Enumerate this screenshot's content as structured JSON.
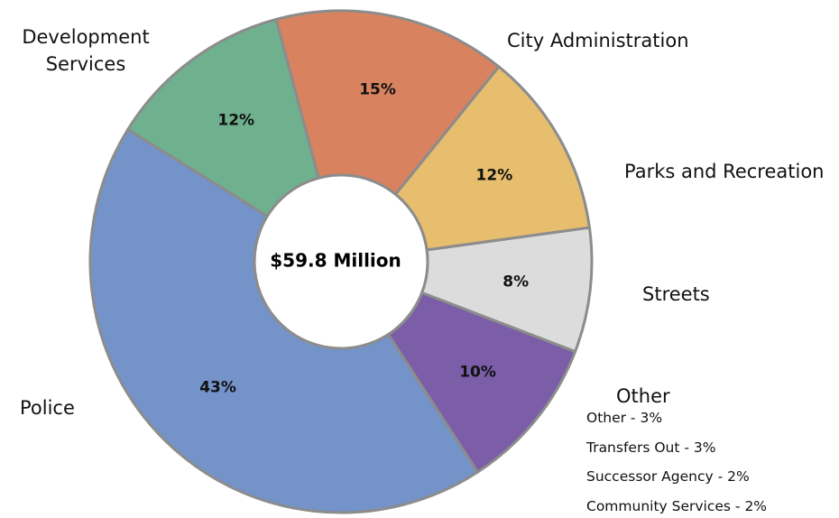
{
  "chart_data": {
    "type": "donut",
    "center_label": "$59.8 Million",
    "categories": [
      "City Administration",
      "Parks and Recreation",
      "Streets",
      "Other",
      "Police",
      "Development Services"
    ],
    "values": [
      15,
      12,
      8,
      10,
      43,
      12
    ],
    "value_labels": [
      "15%",
      "12%",
      "8%",
      "10%",
      "43%",
      "12%"
    ],
    "colors": [
      "#d9825f",
      "#e6be6e",
      "#dcdcdc",
      "#7b5ea7",
      "#7393c9",
      "#6fb08f"
    ],
    "other_breakdown": [
      "Other - 3%",
      "Transfers Out - 3%",
      "Successor Agency - 2%",
      "Community Services - 2%"
    ]
  }
}
